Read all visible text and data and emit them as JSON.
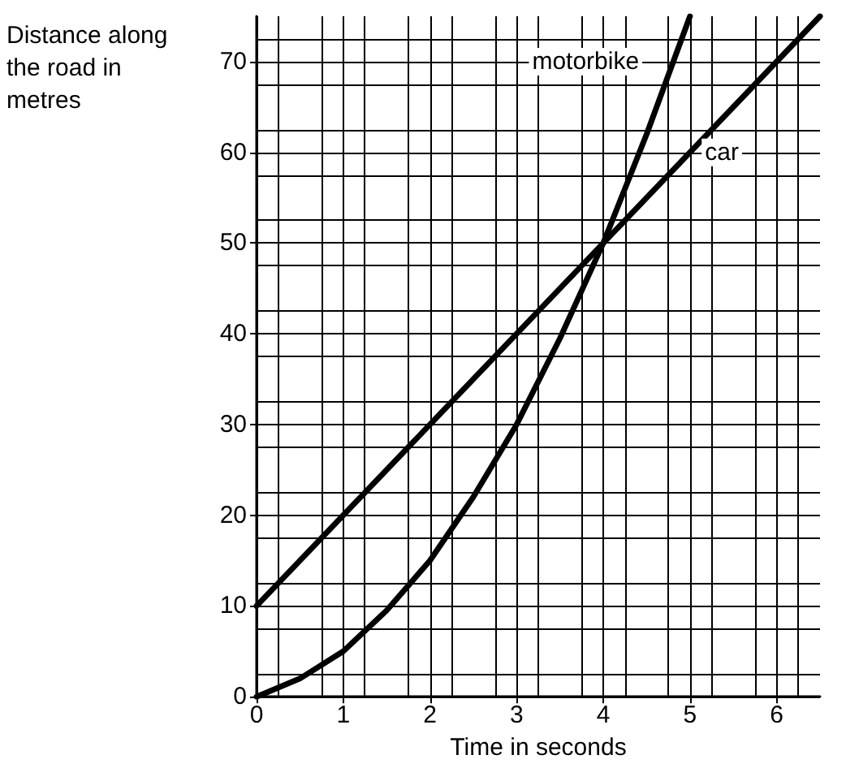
{
  "chart_data": {
    "type": "line",
    "xlabel": "Time in seconds",
    "ylabel": "Distance along the road in metres",
    "series": [
      {
        "name": "motorbike",
        "color": "#000000",
        "x": [
          0,
          0.5,
          1,
          1.5,
          2,
          2.5,
          3,
          3.5,
          4,
          4.5,
          5
        ],
        "values": [
          0,
          2,
          5,
          9.5,
          15,
          22,
          30,
          39.5,
          50,
          62,
          75
        ]
      },
      {
        "name": "car",
        "color": "#000000",
        "x": [
          0,
          6.5
        ],
        "values": [
          10,
          75
        ]
      }
    ],
    "xlim": [
      0,
      6.5
    ],
    "xticks": [
      0,
      1,
      2,
      3,
      4,
      5,
      6
    ],
    "ylim": [
      0,
      75
    ],
    "yticks": [
      0,
      10,
      20,
      30,
      40,
      50,
      60,
      70
    ],
    "grid": true,
    "marker": "none",
    "line_style": "solid",
    "legend": false
  }
}
